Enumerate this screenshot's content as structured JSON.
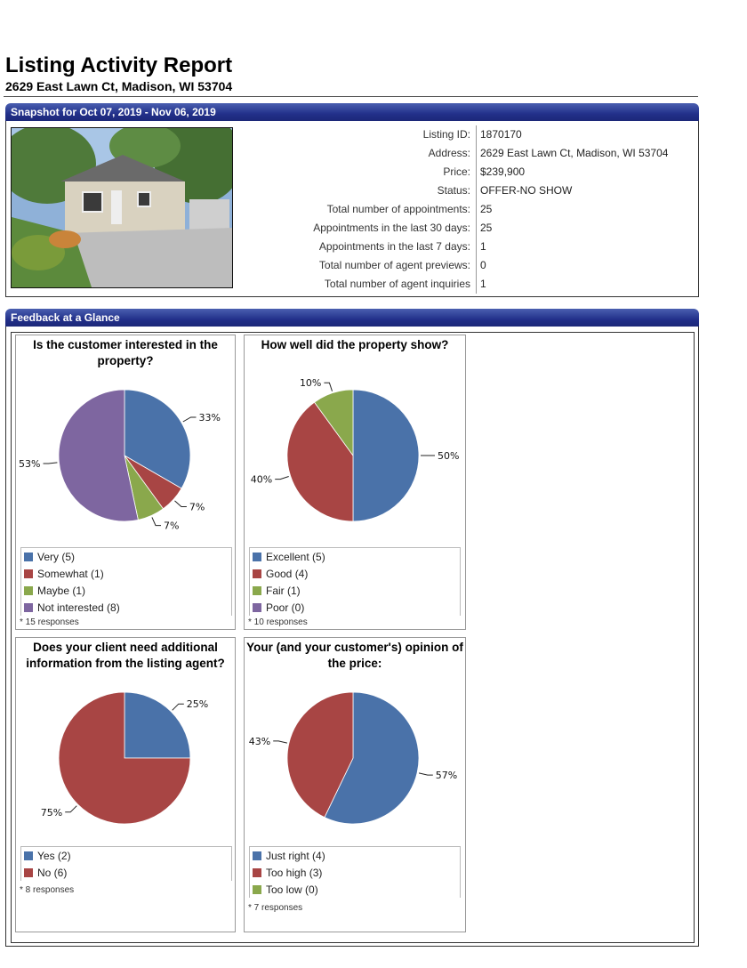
{
  "header": {
    "title": "Listing Activity Report",
    "address": "2629 East Lawn Ct, Madison, WI 53704"
  },
  "snapshot": {
    "heading": "Snapshot for Oct 07, 2019 - Nov 06, 2019",
    "rows": [
      {
        "label": "Listing ID:",
        "value": "1870170"
      },
      {
        "label": "Address:",
        "value": "2629 East Lawn Ct, Madison, WI 53704"
      },
      {
        "label": "Price:",
        "value": "$239,900"
      },
      {
        "label": "Status:",
        "value": "OFFER-NO SHOW"
      },
      {
        "label": "Total number of appointments:",
        "value": "25"
      },
      {
        "label": "Appointments in the last 30 days:",
        "value": "25"
      },
      {
        "label": "Appointments in the last 7 days:",
        "value": "1"
      },
      {
        "label": "Total number of agent previews:",
        "value": "0"
      },
      {
        "label": "Total number of agent inquiries",
        "value": "1"
      }
    ]
  },
  "feedback": {
    "heading": "Feedback at a Glance",
    "colors": {
      "blue": "#4a72a9",
      "red": "#a84544",
      "green": "#8aa84c",
      "purple": "#7e66a0"
    }
  },
  "chart_data": [
    {
      "type": "pie",
      "title": "Is the customer interested in the property?",
      "categories": [
        "Very (5)",
        "Somewhat (1)",
        "Maybe (1)",
        "Not interested (8)"
      ],
      "values": [
        5,
        1,
        1,
        8
      ],
      "percent_labels": [
        "33%",
        "7%",
        "7%",
        "53%"
      ],
      "colors": [
        "#4a72a9",
        "#a84544",
        "#8aa84c",
        "#7e66a0"
      ],
      "responses": "* 15 responses"
    },
    {
      "type": "pie",
      "title": "How well did the property show?",
      "categories": [
        "Excellent (5)",
        "Good (4)",
        "Fair (1)",
        "Poor (0)"
      ],
      "values": [
        5,
        4,
        1,
        0
      ],
      "percent_labels": [
        "50%",
        "40%",
        "10%",
        ""
      ],
      "colors": [
        "#4a72a9",
        "#a84544",
        "#8aa84c",
        "#7e66a0"
      ],
      "responses": "* 10 responses"
    },
    {
      "type": "pie",
      "title": "Does your client need additional information from the listing agent?",
      "categories": [
        "Yes (2)",
        "No (6)"
      ],
      "values": [
        2,
        6
      ],
      "percent_labels": [
        "25%",
        "75%"
      ],
      "colors": [
        "#4a72a9",
        "#a84544"
      ],
      "responses": "* 8 responses"
    },
    {
      "type": "pie",
      "title": "Your (and your customer's) opinion of the price:",
      "categories": [
        "Just right (4)",
        "Too high (3)",
        "Too low (0)"
      ],
      "values": [
        4,
        3,
        0
      ],
      "percent_labels": [
        "57%",
        "43%",
        ""
      ],
      "colors": [
        "#4a72a9",
        "#a84544",
        "#8aa84c"
      ],
      "responses": "* 7 responses"
    }
  ]
}
